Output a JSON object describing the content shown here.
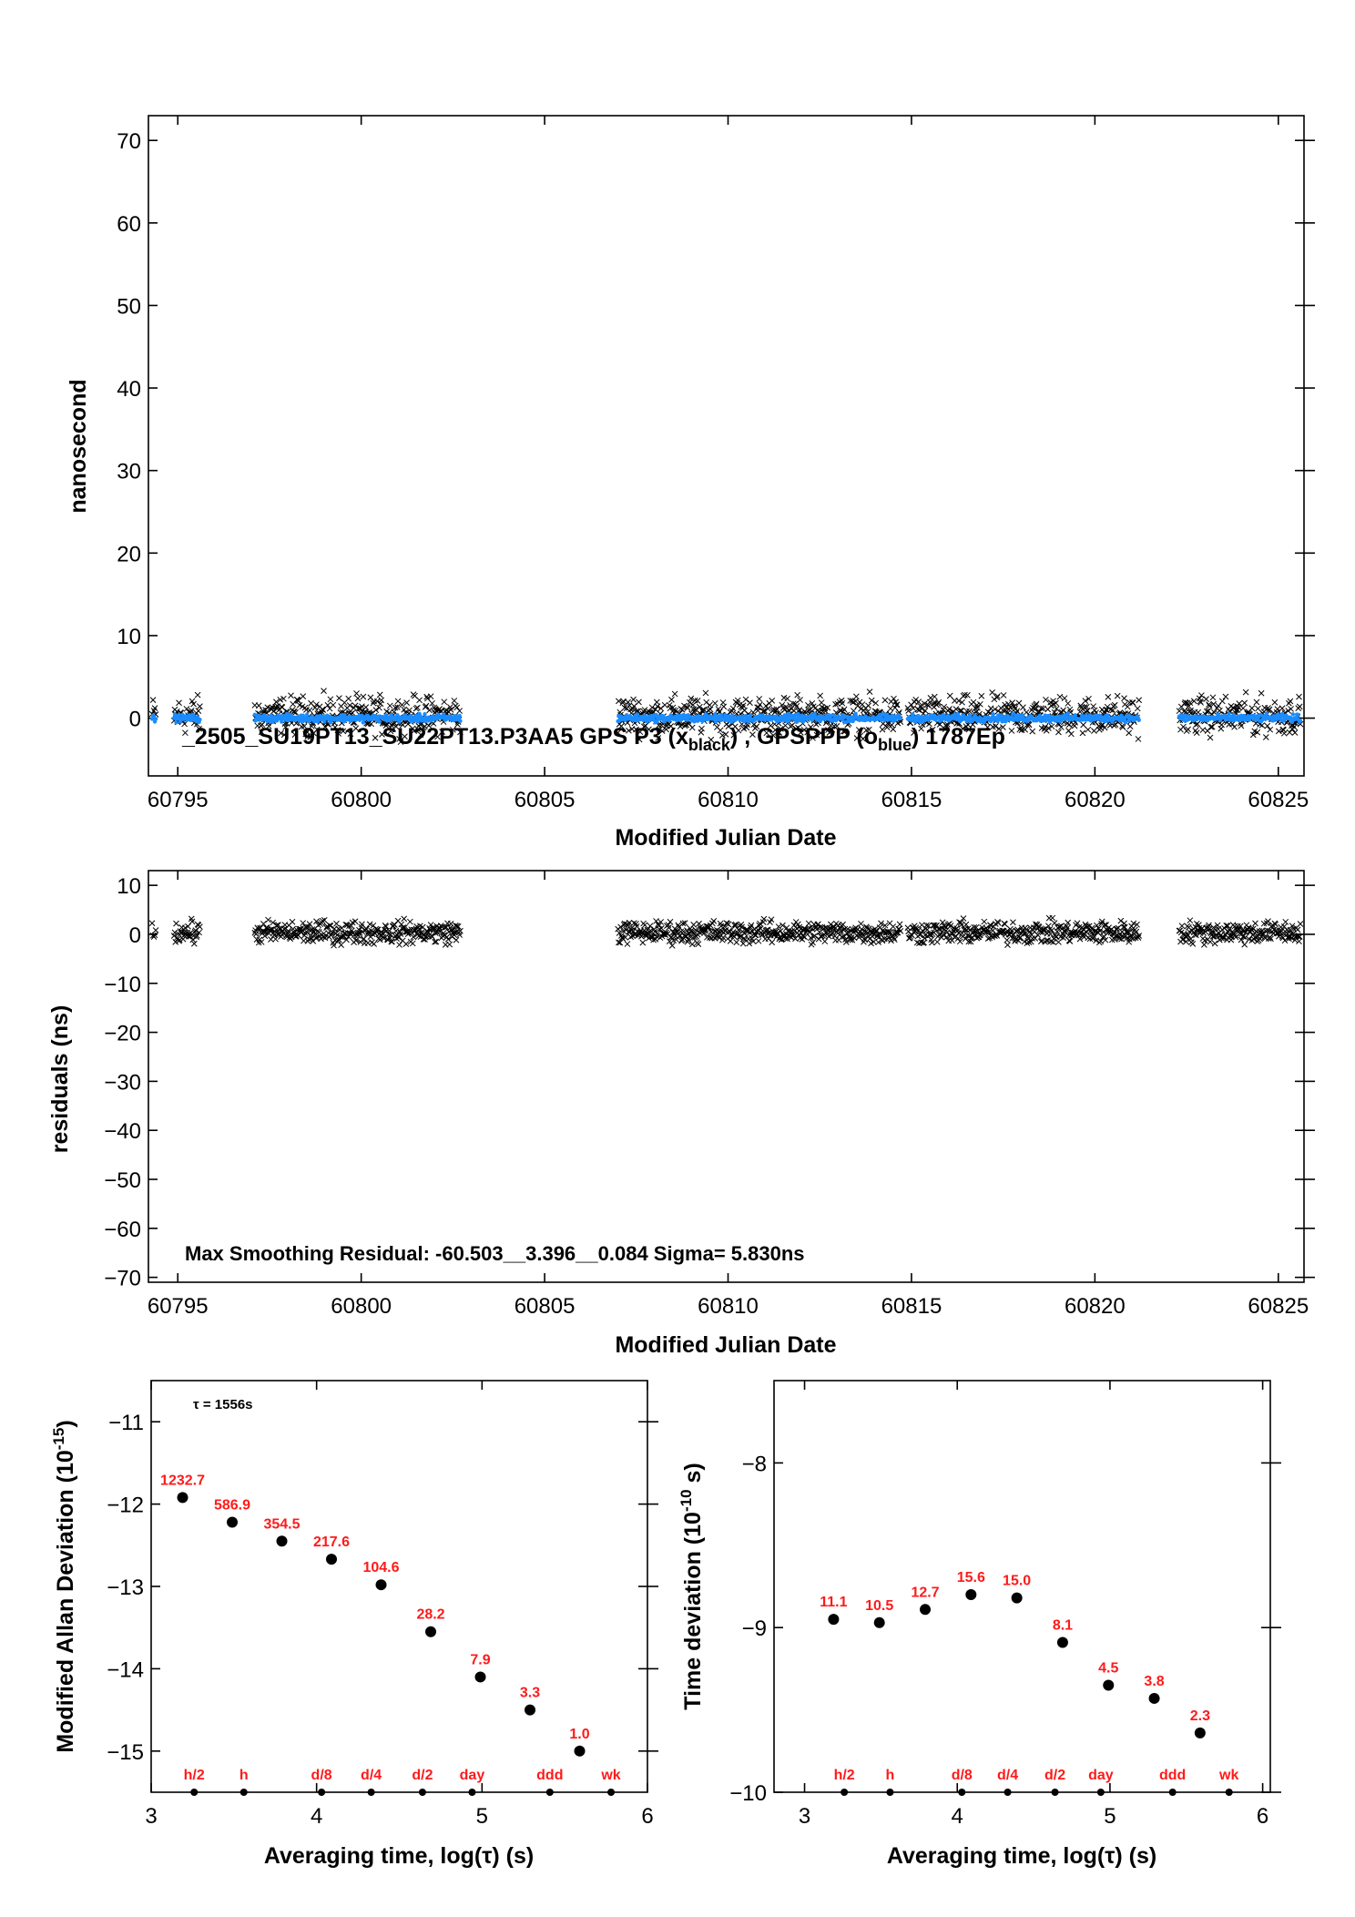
{
  "top_chart": {
    "ylabel": "nanosecond",
    "xlabel": "Modified Julian Date",
    "annotation_main": "_2505_SU19PT13_SU22PT13.P3AA5    GPS P3 (x",
    "annotation_sub1": "black",
    "annotation_mid": ") ,  GPSPPP (o",
    "annotation_sub2": "blue",
    "annotation_end": ")  1787Ep"
  },
  "mid_chart": {
    "ylabel": "residuals (ns)",
    "xlabel": "Modified Julian Date",
    "annotation": "Max Smoothing Residual: -60.503__3.396__0.084  Sigma= 5.830ns"
  },
  "adev_chart": {
    "ylabel": "Modified Allan Deviation (10",
    "ylabel_exp": "-15",
    "ylabel_end": ")",
    "xlabel": "Averaging time, log(τ) (s)",
    "tau_note": "τ = 1556s"
  },
  "tdev_chart": {
    "ylabel": "Time deviation (10",
    "ylabel_exp": "-10",
    "ylabel_end": " s)",
    "xlabel": "Averaging time, log(τ) (s)"
  },
  "colors": {
    "black_series": "#000000",
    "blue_series": "#1a8cff",
    "labels_red": "#ff1a1a"
  },
  "chart_data": [
    {
      "id": "top",
      "type": "scatter",
      "xlim": [
        60794.2,
        60825.7
      ],
      "ylim": [
        -7,
        73
      ],
      "xticks": [
        60795,
        60800,
        60805,
        60810,
        60815,
        60820,
        60825
      ],
      "yticks": [
        0,
        10,
        20,
        30,
        40,
        50,
        60,
        70
      ],
      "segments": [
        [
          60794.3,
          60794.4
        ],
        [
          60794.9,
          60795.6
        ],
        [
          60797.1,
          60802.7
        ],
        [
          60807.0,
          60814.7
        ],
        [
          60814.9,
          60821.2
        ],
        [
          60822.3,
          60825.6
        ]
      ],
      "series": [
        {
          "name": "GPS P3",
          "marker": "x",
          "color": "#000000",
          "mean": 0.3,
          "spread": 1.6
        },
        {
          "name": "GPSPPP",
          "marker": "o",
          "color": "#1a8cff",
          "mean": 0.0,
          "spread": 0.3
        }
      ]
    },
    {
      "id": "mid",
      "type": "scatter",
      "xlim": [
        60794.2,
        60825.7
      ],
      "ylim": [
        -71,
        13
      ],
      "xticks": [
        60795,
        60800,
        60805,
        60810,
        60815,
        60820,
        60825
      ],
      "yticks": [
        10,
        0,
        -10,
        -20,
        -30,
        -40,
        -50,
        -60,
        -70
      ],
      "segments": [
        [
          60794.3,
          60794.4
        ],
        [
          60794.9,
          60795.6
        ],
        [
          60797.1,
          60802.7
        ],
        [
          60807.0,
          60814.7
        ],
        [
          60814.9,
          60821.2
        ],
        [
          60822.3,
          60825.6
        ]
      ],
      "series": [
        {
          "name": "residuals",
          "marker": "x",
          "color": "#000000",
          "mean": 0.4,
          "spread": 1.6
        }
      ]
    },
    {
      "id": "adev",
      "type": "scatter",
      "xlim": [
        3,
        6
      ],
      "ylim": [
        -15.5,
        -10.5
      ],
      "xticks": [
        3,
        4,
        5,
        6
      ],
      "yticks": [
        -11,
        -12,
        -13,
        -14,
        -15
      ],
      "x": [
        3.19,
        3.49,
        3.79,
        4.09,
        4.39,
        4.69,
        4.99,
        5.29,
        5.59
      ],
      "y": [
        -11.92,
        -12.22,
        -12.45,
        -12.67,
        -12.98,
        -13.55,
        -14.1,
        -14.5,
        -15.0
      ],
      "labels": [
        "1232.7",
        "586.9",
        "354.5",
        "217.6",
        "104.6",
        "28.2",
        "7.9",
        "3.3",
        "1.0"
      ],
      "markers": [
        {
          "label": "h/2",
          "x": 3.26
        },
        {
          "label": "h",
          "x": 3.56
        },
        {
          "label": "d/8",
          "x": 4.03
        },
        {
          "label": "d/4",
          "x": 4.33
        },
        {
          "label": "d/2",
          "x": 4.64
        },
        {
          "label": "day",
          "x": 4.94
        },
        {
          "label": "ddd",
          "x": 5.41
        },
        {
          "label": "wk",
          "x": 5.78
        }
      ]
    },
    {
      "id": "tdev",
      "type": "scatter",
      "xlim": [
        2.8,
        6.05
      ],
      "ylim": [
        -10,
        -7.5
      ],
      "xticks": [
        3,
        4,
        5,
        6
      ],
      "yticks": [
        -8,
        -9,
        -10
      ],
      "x": [
        3.19,
        3.49,
        3.79,
        4.09,
        4.39,
        4.69,
        4.99,
        5.29,
        5.59
      ],
      "y": [
        -8.95,
        -8.97,
        -8.89,
        -8.8,
        -8.82,
        -9.09,
        -9.35,
        -9.43,
        -9.64
      ],
      "labels": [
        "11.1",
        "10.5",
        "12.7",
        "15.6",
        "15.0",
        "8.1",
        "4.5",
        "3.8",
        "2.3"
      ],
      "markers": [
        {
          "label": "h/2",
          "x": 3.26
        },
        {
          "label": "h",
          "x": 3.56
        },
        {
          "label": "d/8",
          "x": 4.03
        },
        {
          "label": "d/4",
          "x": 4.33
        },
        {
          "label": "d/2",
          "x": 4.64
        },
        {
          "label": "day",
          "x": 4.94
        },
        {
          "label": "ddd",
          "x": 5.41
        },
        {
          "label": "wk",
          "x": 5.78
        }
      ]
    }
  ]
}
